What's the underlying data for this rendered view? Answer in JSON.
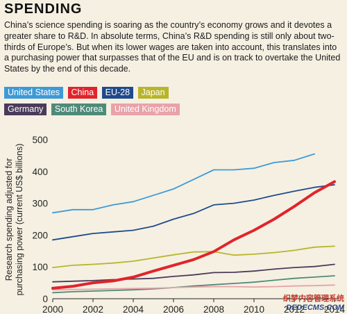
{
  "header": {
    "title": "SPENDING",
    "body": "China’s science spending is soaring as the country’s economy grows and it devotes a greater share to R&D. In absolute terms, China’s R&D spending is still only about two-thirds of Europe’s. But when its lower wages are taken into account, this translates into a purchasing power that surpasses that of the EU and is on track to overtake the United States by the end of this decade."
  },
  "legend": {
    "row1": [
      {
        "label": "United States",
        "color": "#3d9ad6"
      },
      {
        "label": "China",
        "color": "#e0242b"
      },
      {
        "label": "EU-28",
        "color": "#1f4a8c"
      },
      {
        "label": "Japan",
        "color": "#b8b52a"
      }
    ],
    "row2": [
      {
        "label": "Germany",
        "color": "#4a3a5a"
      },
      {
        "label": "South Korea",
        "color": "#4f8a78"
      },
      {
        "label": "United Kingdom",
        "color": "#e8a2a8"
      }
    ]
  },
  "chart_data": {
    "type": "line",
    "ylabel": "Research spending adjusted for purchasing power (current US$ billions)",
    "xlabel": "",
    "xlim": [
      2000,
      2014
    ],
    "ylim": [
      0,
      500
    ],
    "x_ticks": [
      "2000",
      "2002",
      "2004",
      "2006",
      "2008",
      "2010",
      "2012",
      "2014"
    ],
    "y_ticks": [
      "0",
      "100",
      "200",
      "300",
      "400",
      "500"
    ],
    "grid": false,
    "series": [
      {
        "name": "United States",
        "color": "#3d9ad6",
        "x": [
          2000,
          2001,
          2002,
          2003,
          2004,
          2005,
          2006,
          2007,
          2008,
          2009,
          2010,
          2011,
          2012,
          2013
        ],
        "values": [
          270,
          280,
          280,
          295,
          305,
          325,
          345,
          375,
          405,
          405,
          410,
          428,
          435,
          455
        ]
      },
      {
        "name": "EU-28",
        "color": "#1f4a8c",
        "x": [
          2000,
          2001,
          2002,
          2003,
          2004,
          2005,
          2006,
          2007,
          2008,
          2009,
          2010,
          2011,
          2012,
          2013,
          2014
        ],
        "values": [
          185,
          195,
          205,
          210,
          215,
          228,
          250,
          268,
          295,
          300,
          310,
          325,
          338,
          350,
          358
        ]
      },
      {
        "name": "Japan",
        "color": "#b8b52a",
        "x": [
          2000,
          2001,
          2002,
          2003,
          2004,
          2005,
          2006,
          2007,
          2008,
          2009,
          2010,
          2011,
          2012,
          2013,
          2014
        ],
        "values": [
          98,
          105,
          108,
          112,
          118,
          128,
          138,
          147,
          148,
          137,
          140,
          145,
          152,
          162,
          165
        ]
      },
      {
        "name": "Germany",
        "color": "#4a3a5a",
        "x": [
          2000,
          2001,
          2002,
          2003,
          2004,
          2005,
          2006,
          2007,
          2008,
          2009,
          2010,
          2011,
          2012,
          2013,
          2014
        ],
        "values": [
          53,
          55,
          57,
          60,
          62,
          64,
          70,
          75,
          82,
          83,
          87,
          93,
          98,
          101,
          108
        ]
      },
      {
        "name": "South Korea",
        "color": "#4f8a78",
        "x": [
          2000,
          2001,
          2002,
          2003,
          2004,
          2005,
          2006,
          2007,
          2008,
          2009,
          2010,
          2011,
          2012,
          2013,
          2014
        ],
        "values": [
          19,
          22,
          24,
          26,
          28,
          31,
          35,
          40,
          44,
          48,
          52,
          58,
          64,
          68,
          72
        ]
      },
      {
        "name": "United Kingdom",
        "color": "#e8a2a8",
        "x": [
          2000,
          2001,
          2002,
          2003,
          2004,
          2005,
          2006,
          2007,
          2008,
          2009,
          2010,
          2011,
          2012,
          2013,
          2014
        ],
        "values": [
          28,
          29,
          30,
          31,
          32,
          33,
          35,
          37,
          38,
          38,
          37,
          38,
          40,
          41,
          43
        ]
      },
      {
        "name": "China",
        "color": "#e0242b",
        "x": [
          2000,
          2001,
          2002,
          2003,
          2004,
          2005,
          2006,
          2007,
          2008,
          2009,
          2010,
          2011,
          2012,
          2013,
          2014
        ],
        "values": [
          33,
          39,
          50,
          56,
          68,
          87,
          105,
          123,
          148,
          185,
          215,
          250,
          290,
          333,
          368
        ]
      }
    ]
  },
  "watermark": {
    "line1": "织梦内容管理系统",
    "line2": "DEDECMS.COM"
  }
}
